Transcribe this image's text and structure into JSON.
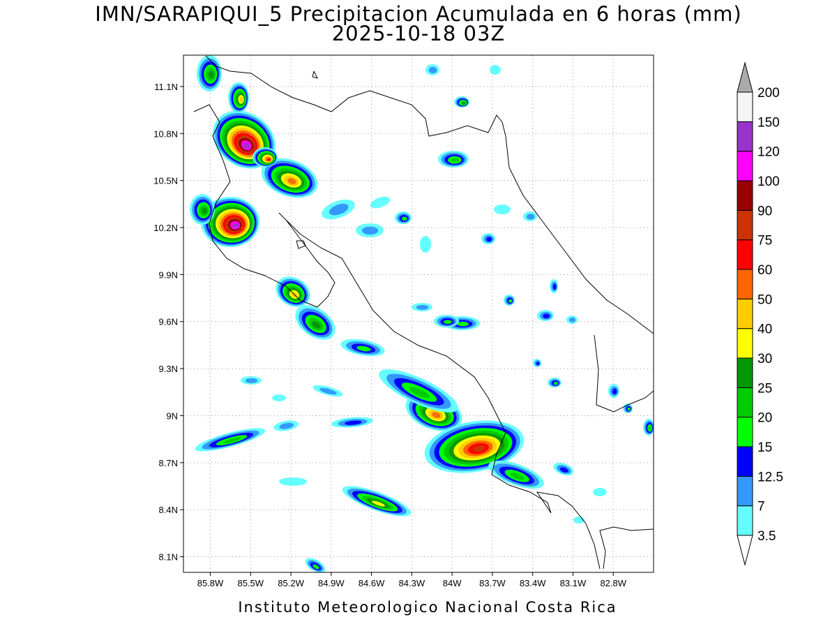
{
  "map": {
    "title": "IMN/SARAPIQUI_5 Precipitacion Acumulada en 6 horas (mm)",
    "subtitle": "2025-10-18 03Z",
    "credit": "Instituto Meteorologico Nacional Costa Rica",
    "lon_range": [
      -86.0,
      -82.5
    ],
    "lat_range": [
      8.0,
      11.3
    ],
    "lat_ticks": [
      {
        "value": 11.1,
        "label": "11.1N"
      },
      {
        "value": 10.8,
        "label": "10.8N"
      },
      {
        "value": 10.5,
        "label": "10.5N"
      },
      {
        "value": 10.2,
        "label": "10.2N"
      },
      {
        "value": 9.9,
        "label": "9.9N"
      },
      {
        "value": 9.6,
        "label": "9.6N"
      },
      {
        "value": 9.3,
        "label": "9.3N"
      },
      {
        "value": 9.0,
        "label": "9N"
      },
      {
        "value": 8.7,
        "label": "8.7N"
      },
      {
        "value": 8.4,
        "label": "8.4N"
      },
      {
        "value": 8.1,
        "label": "8.1N"
      }
    ],
    "lon_ticks": [
      {
        "value": -85.8,
        "label": "85.8W"
      },
      {
        "value": -85.5,
        "label": "85.5W"
      },
      {
        "value": -85.2,
        "label": "85.2W"
      },
      {
        "value": -84.9,
        "label": "84.9W"
      },
      {
        "value": -84.6,
        "label": "84.6W"
      },
      {
        "value": -84.3,
        "label": "84.3W"
      },
      {
        "value": -84.0,
        "label": "84W"
      },
      {
        "value": -83.7,
        "label": "83.7W"
      },
      {
        "value": -83.4,
        "label": "83.4W"
      },
      {
        "value": -83.1,
        "label": "83.1W"
      },
      {
        "value": -82.8,
        "label": "82.8W"
      }
    ],
    "legend": {
      "levels": [
        3.5,
        7,
        12.5,
        15,
        20,
        25,
        30,
        40,
        50,
        60,
        75,
        90,
        100,
        120,
        150,
        200
      ],
      "colors": [
        "#66ffff",
        "#3399ff",
        "#0000ff",
        "#00ff00",
        "#00cc00",
        "#009900",
        "#ffff00",
        "#ffcc00",
        "#ff6600",
        "#ff0000",
        "#cc3300",
        "#990000",
        "#ff00ff",
        "#9933cc",
        "#f5f5f5"
      ],
      "under_color": "#ffffff",
      "over_color": "#aaaaaa"
    }
  }
}
